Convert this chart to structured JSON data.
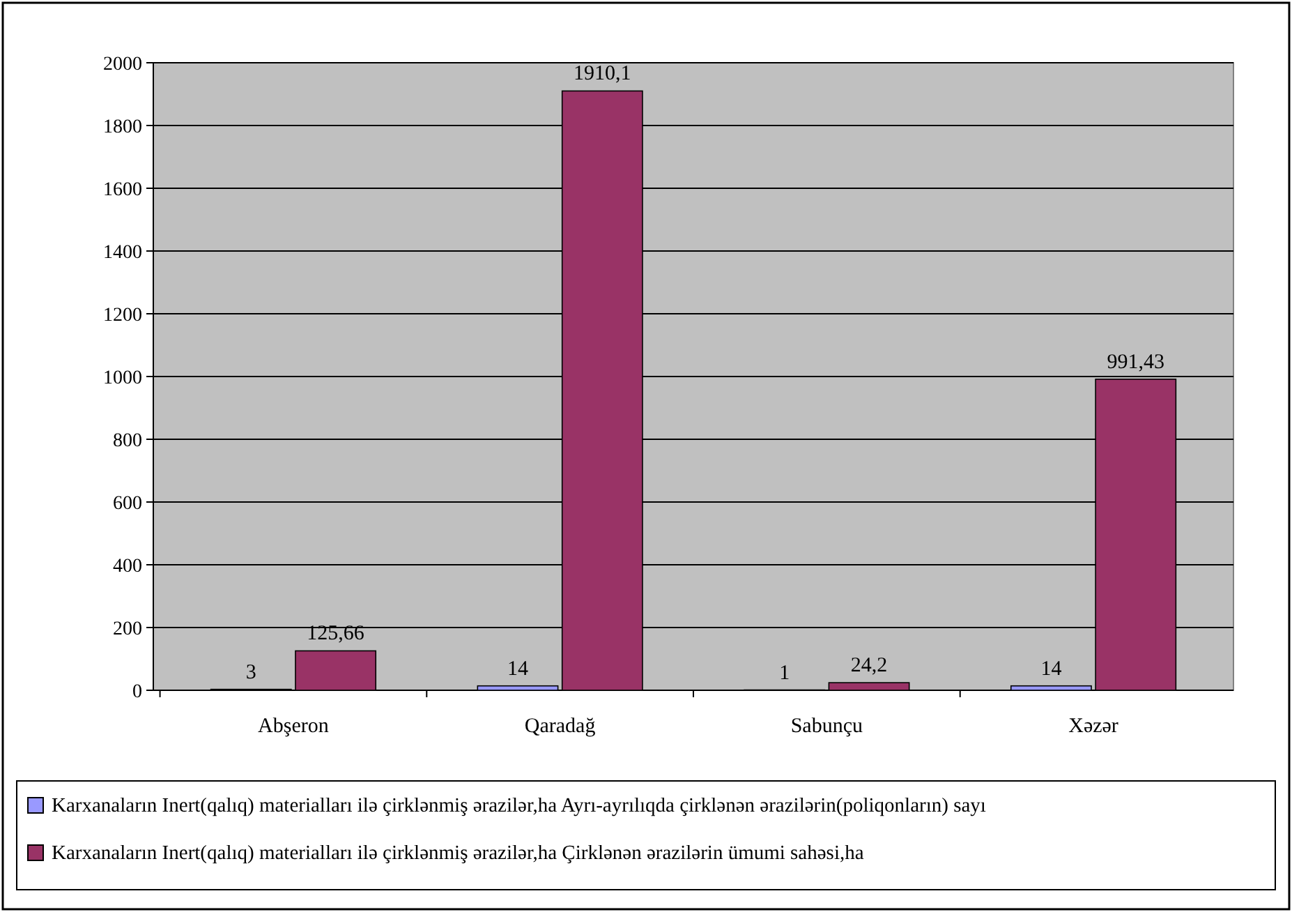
{
  "chart_data": {
    "type": "bar",
    "categories": [
      "Abşeron",
      "Qaradağ",
      "Sabunçu",
      "Xəzər"
    ],
    "series": [
      {
        "name": "Karxanaların Inert(qalıq) materialları ilə çirklənmiş ərazilər,ha Ayrı-ayrılıqda çirklənən ərazilərin(poliqonların) sayı",
        "color": "#9999ff",
        "values": [
          3,
          14,
          1,
          14
        ],
        "value_labels": [
          "3",
          "14",
          "1",
          "14"
        ]
      },
      {
        "name": "Karxanaların Inert(qalıq) materialları ilə çirklənmiş ərazilər,ha Çirklənən ərazilərin ümumi sahəsi,ha",
        "color": "#993366",
        "values": [
          125.66,
          1910.1,
          24.2,
          991.43
        ],
        "value_labels": [
          "125,66",
          "1910,1",
          "24,2",
          "991,43"
        ]
      }
    ],
    "ylim": [
      0,
      2000
    ],
    "yticks": [
      0,
      200,
      400,
      600,
      800,
      1000,
      1200,
      1400,
      1600,
      1800,
      2000
    ],
    "grid": "y",
    "legend": "bottom"
  }
}
